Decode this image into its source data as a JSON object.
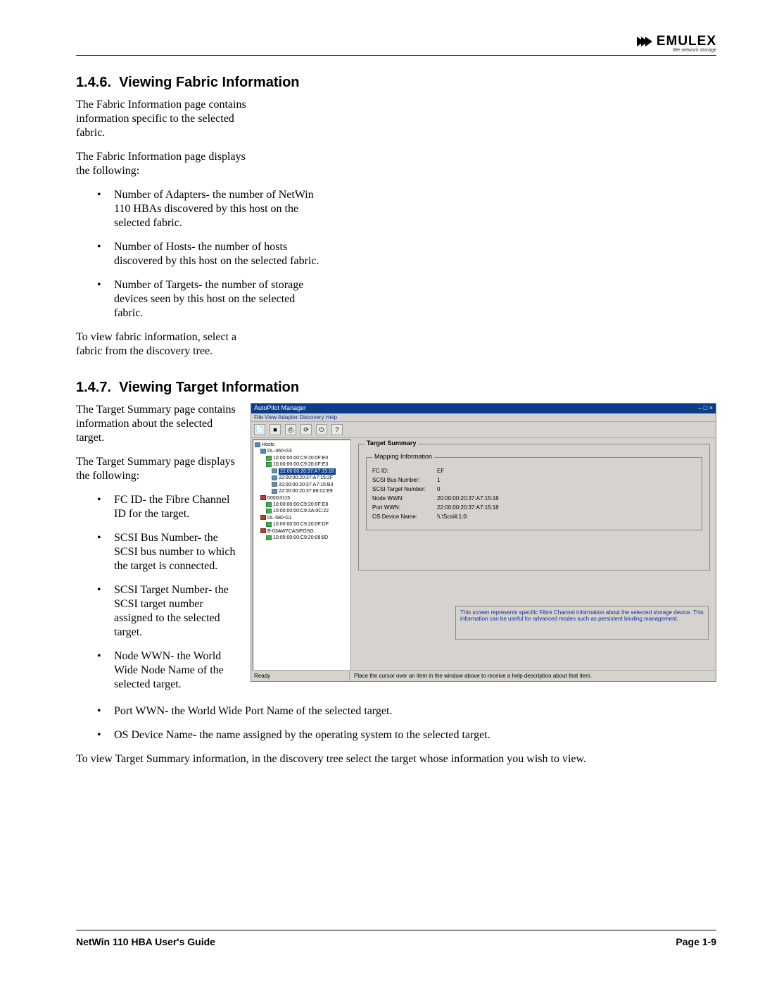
{
  "brand": {
    "name": "EMULEX",
    "tag": "We network storage"
  },
  "sections": {
    "fabric": {
      "num": "1.4.6.",
      "title": "Viewing Fabric Information",
      "intro": "The Fabric Information page contains information specific to the selected fabric.",
      "sub": "The Fabric Information page displays the following:",
      "bullets": [
        "Number of Adapters- the number of NetWin 110 HBAs discovered by this host on the selected fabric.",
        "Number of Hosts- the number of hosts discovered by this host on the selected fabric.",
        "Number of Targets- the number of storage devices seen by this host on the selected fabric."
      ],
      "tail": "To view fabric information, select a fabric from the discovery tree."
    },
    "target": {
      "num": "1.4.7.",
      "title": "Viewing Target Information",
      "intro": "The Target Summary page contains information about the selected target.",
      "sub": "The Target Summary page displays the following:",
      "bullets_left": [
        "FC ID- the Fibre Channel ID for the target.",
        "SCSI Bus Number- the SCSI bus number to which the target is connected.",
        "SCSI Target Number- the SCSI target number assigned to the selected target.",
        "Node WWN- the World Wide Node Name of the selected target."
      ],
      "bullets_below": [
        "Port WWN- the World Wide Port Name of the selected target.",
        "OS Device Name- the name assigned by the operating system to the selected target."
      ],
      "tail": "To view Target Summary information, in the discovery tree select the target whose information you wish to view."
    }
  },
  "screenshot": {
    "title": "AutoPilot Manager",
    "menu": "File  View  Adapter  Discovery  Help",
    "toolbar": [
      "📄",
      "■",
      "⎙",
      "⟳",
      "⏻",
      "?"
    ],
    "tree": [
      {
        "lvl": 0,
        "icon": "blue",
        "text": "Hosts"
      },
      {
        "lvl": 1,
        "icon": "blue",
        "text": "DL-360-G3"
      },
      {
        "lvl": 2,
        "icon": "green",
        "text": "10:00:00:00:C9:20:0F:E0"
      },
      {
        "lvl": 2,
        "icon": "green",
        "text": "10:00:00:00:C9:20:0F:E3"
      },
      {
        "lvl": 3,
        "icon": "disk",
        "text": "22:00:00:20:37:A7:15:18",
        "sel": true
      },
      {
        "lvl": 3,
        "icon": "disk",
        "text": "22:00:00:20:37:A7:15:2F"
      },
      {
        "lvl": 3,
        "icon": "disk",
        "text": "22:00:00:20:37:A7:15:B3"
      },
      {
        "lvl": 3,
        "icon": "disk",
        "text": "22:00:00:20:37:88:02:E9"
      },
      {
        "lvl": 1,
        "icon": "red",
        "text": "000G3115"
      },
      {
        "lvl": 2,
        "icon": "green",
        "text": "10:00:00:00:C9:20:0F:E8"
      },
      {
        "lvl": 2,
        "icon": "green",
        "text": "10:00:00:00:C9:3A:0C:22"
      },
      {
        "lvl": 1,
        "icon": "red",
        "text": "DL-580-G1"
      },
      {
        "lvl": 2,
        "icon": "green",
        "text": "10:00:00:00:C9:20:0F:DF"
      },
      {
        "lvl": 1,
        "icon": "red",
        "text": "B-03AW7CASIFOSG"
      },
      {
        "lvl": 2,
        "icon": "green",
        "text": "10:00:00:00:C9:20:08:8D"
      }
    ],
    "panel": {
      "title": "Target Summary",
      "inner_title": "Mapping Information",
      "rows": [
        {
          "lbl": "FC ID:",
          "val": "EF"
        },
        {
          "lbl": "SCSI Bus Number:",
          "val": "1"
        },
        {
          "lbl": "SCSI Target Number:",
          "val": "0"
        },
        {
          "lbl": "Node WWN:",
          "val": "20:00:00:20:37:A7:15:18"
        },
        {
          "lbl": "Port WWN:",
          "val": "22:00:00:20:37:A7:15:18"
        },
        {
          "lbl": "OS Device Name:",
          "val": "\\\\.\\Scsi4:1:0:"
        }
      ],
      "hint": "This screen represents specific Fibre Channel information about the selected storage device. This information can be useful for advanced modes such as persistent binding management."
    },
    "status": {
      "left": "Ready",
      "right": "Place the cursor over an item in the window above to receive a help description about that item."
    }
  },
  "footer": {
    "left": "NetWin 110 HBA User's Guide",
    "right": "Page 1-9"
  }
}
